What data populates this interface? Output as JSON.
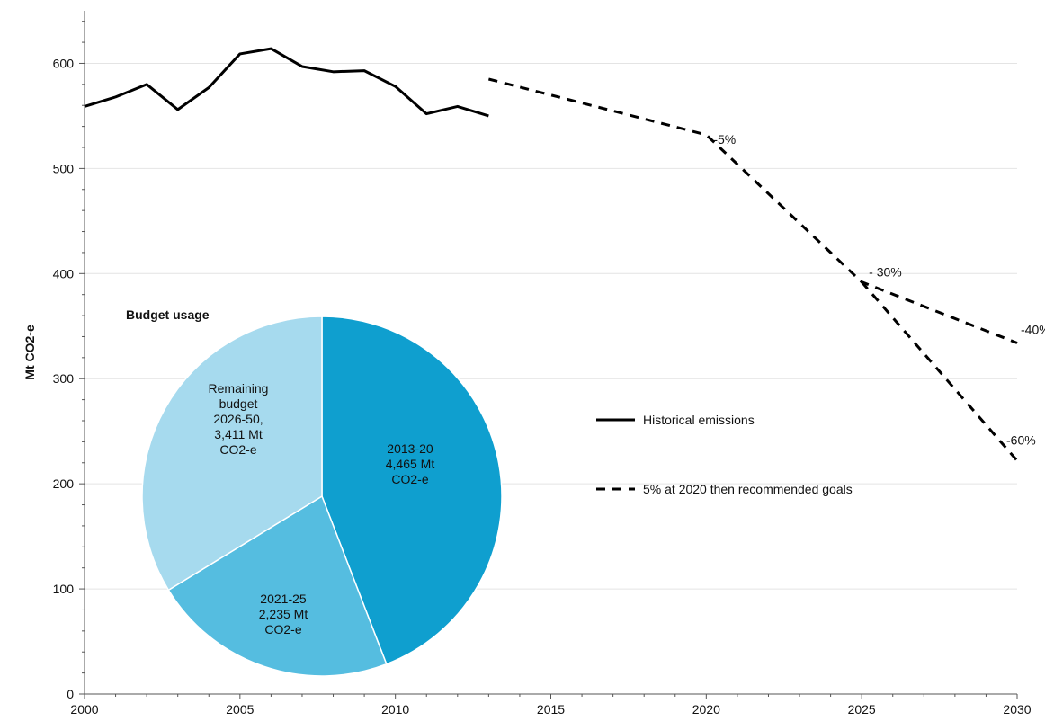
{
  "chart_data": [
    {
      "type": "line",
      "ylabel": "Mt CO2-e",
      "xlim": [
        2000,
        2030
      ],
      "ylim": [
        0,
        650
      ],
      "x_ticks": [
        2000,
        2005,
        2010,
        2015,
        2020,
        2025,
        2030
      ],
      "y_ticks": [
        0,
        100,
        200,
        300,
        400,
        500,
        600
      ],
      "grid": "horizontal",
      "legend_position": "center-right",
      "series": [
        {
          "name": "Historical emissions",
          "style": "solid",
          "x": [
            2000,
            2001,
            2002,
            2003,
            2004,
            2005,
            2006,
            2007,
            2008,
            2009,
            2010,
            2011,
            2012,
            2013
          ],
          "y": [
            559,
            568,
            580,
            556,
            577,
            609,
            614,
            597,
            592,
            593,
            578,
            552,
            559,
            550
          ]
        },
        {
          "name": "5% at 2020 then recommended goals",
          "style": "dashed",
          "segments": [
            {
              "x": [
                2013,
                2020,
                2025,
                2030
              ],
              "y": [
                585,
                532,
                392,
                334
              ]
            },
            {
              "x": [
                2025,
                2030
              ],
              "y": [
                392,
                222
              ]
            }
          ]
        }
      ],
      "annotations": [
        {
          "text": "-5%",
          "x": 2020,
          "y": 532
        },
        {
          "text": "- 30%",
          "x": 2025,
          "y": 392
        },
        {
          "text": "-40%",
          "x": 2030,
          "y": 334
        },
        {
          "text": "-60%",
          "x": 2030,
          "y": 222
        }
      ]
    },
    {
      "type": "pie",
      "title": "Budget usage",
      "slices": [
        {
          "label": [
            "2013-20",
            "4,465 Mt",
            "CO2-e"
          ],
          "value": 4465,
          "color": "#0f9fcf"
        },
        {
          "label": [
            "2021-25",
            "2,235 Mt",
            "CO2-e"
          ],
          "value": 2235,
          "color": "#55bde0"
        },
        {
          "label": [
            "Remaining",
            "budget",
            "2026-50,",
            "3,411 Mt",
            "CO2-e"
          ],
          "value": 3411,
          "color": "#a6daee"
        }
      ]
    }
  ]
}
